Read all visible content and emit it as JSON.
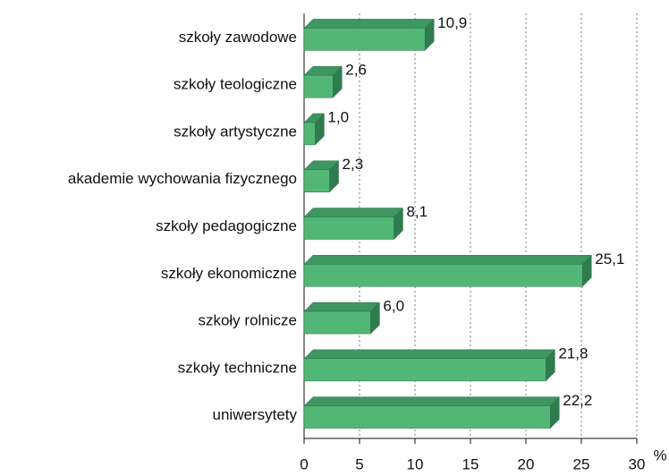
{
  "chart_data": {
    "type": "bar",
    "orientation": "horizontal",
    "categories": [
      "szkoły zawodowe",
      "szkoły teologiczne",
      "szkoły artystyczne",
      "akademie wychowania fizycznego",
      "szkoły pedagogiczne",
      "szkoły ekonomiczne",
      "szkoły rolnicze",
      "szkoły techniczne",
      "uniwersytety"
    ],
    "values": [
      10.9,
      2.6,
      1.0,
      2.3,
      8.1,
      25.1,
      6.0,
      21.8,
      22.2
    ],
    "value_labels": [
      "10,9",
      "2,6",
      "1,0",
      "2,3",
      "8,1",
      "25,1",
      "6,0",
      "21,8",
      "22,2"
    ],
    "color": "#52b775",
    "xlim": [
      0,
      30
    ],
    "xticks": [
      0,
      5,
      10,
      15,
      20,
      25,
      30
    ],
    "x_label": "%",
    "grid": true
  }
}
